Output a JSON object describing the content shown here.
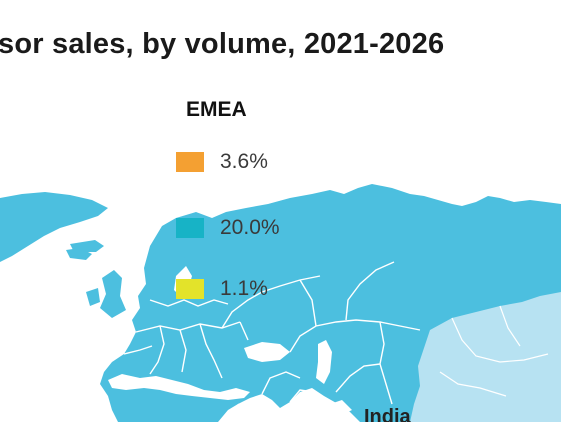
{
  "title": "sor sales, by volume, 2021-2026",
  "legend": {
    "title": "EMEA",
    "items": [
      {
        "label": "3.6%",
        "color": "#f4a032"
      },
      {
        "label": "20.0%",
        "color": "#17b3c6"
      },
      {
        "label": "1.1%",
        "color": "#e3e32a"
      }
    ]
  },
  "map": {
    "land_color": "#4cbfdf",
    "light_land_color": "#b7e2f2",
    "border_color": "#ffffff",
    "labels": [
      "India"
    ]
  }
}
